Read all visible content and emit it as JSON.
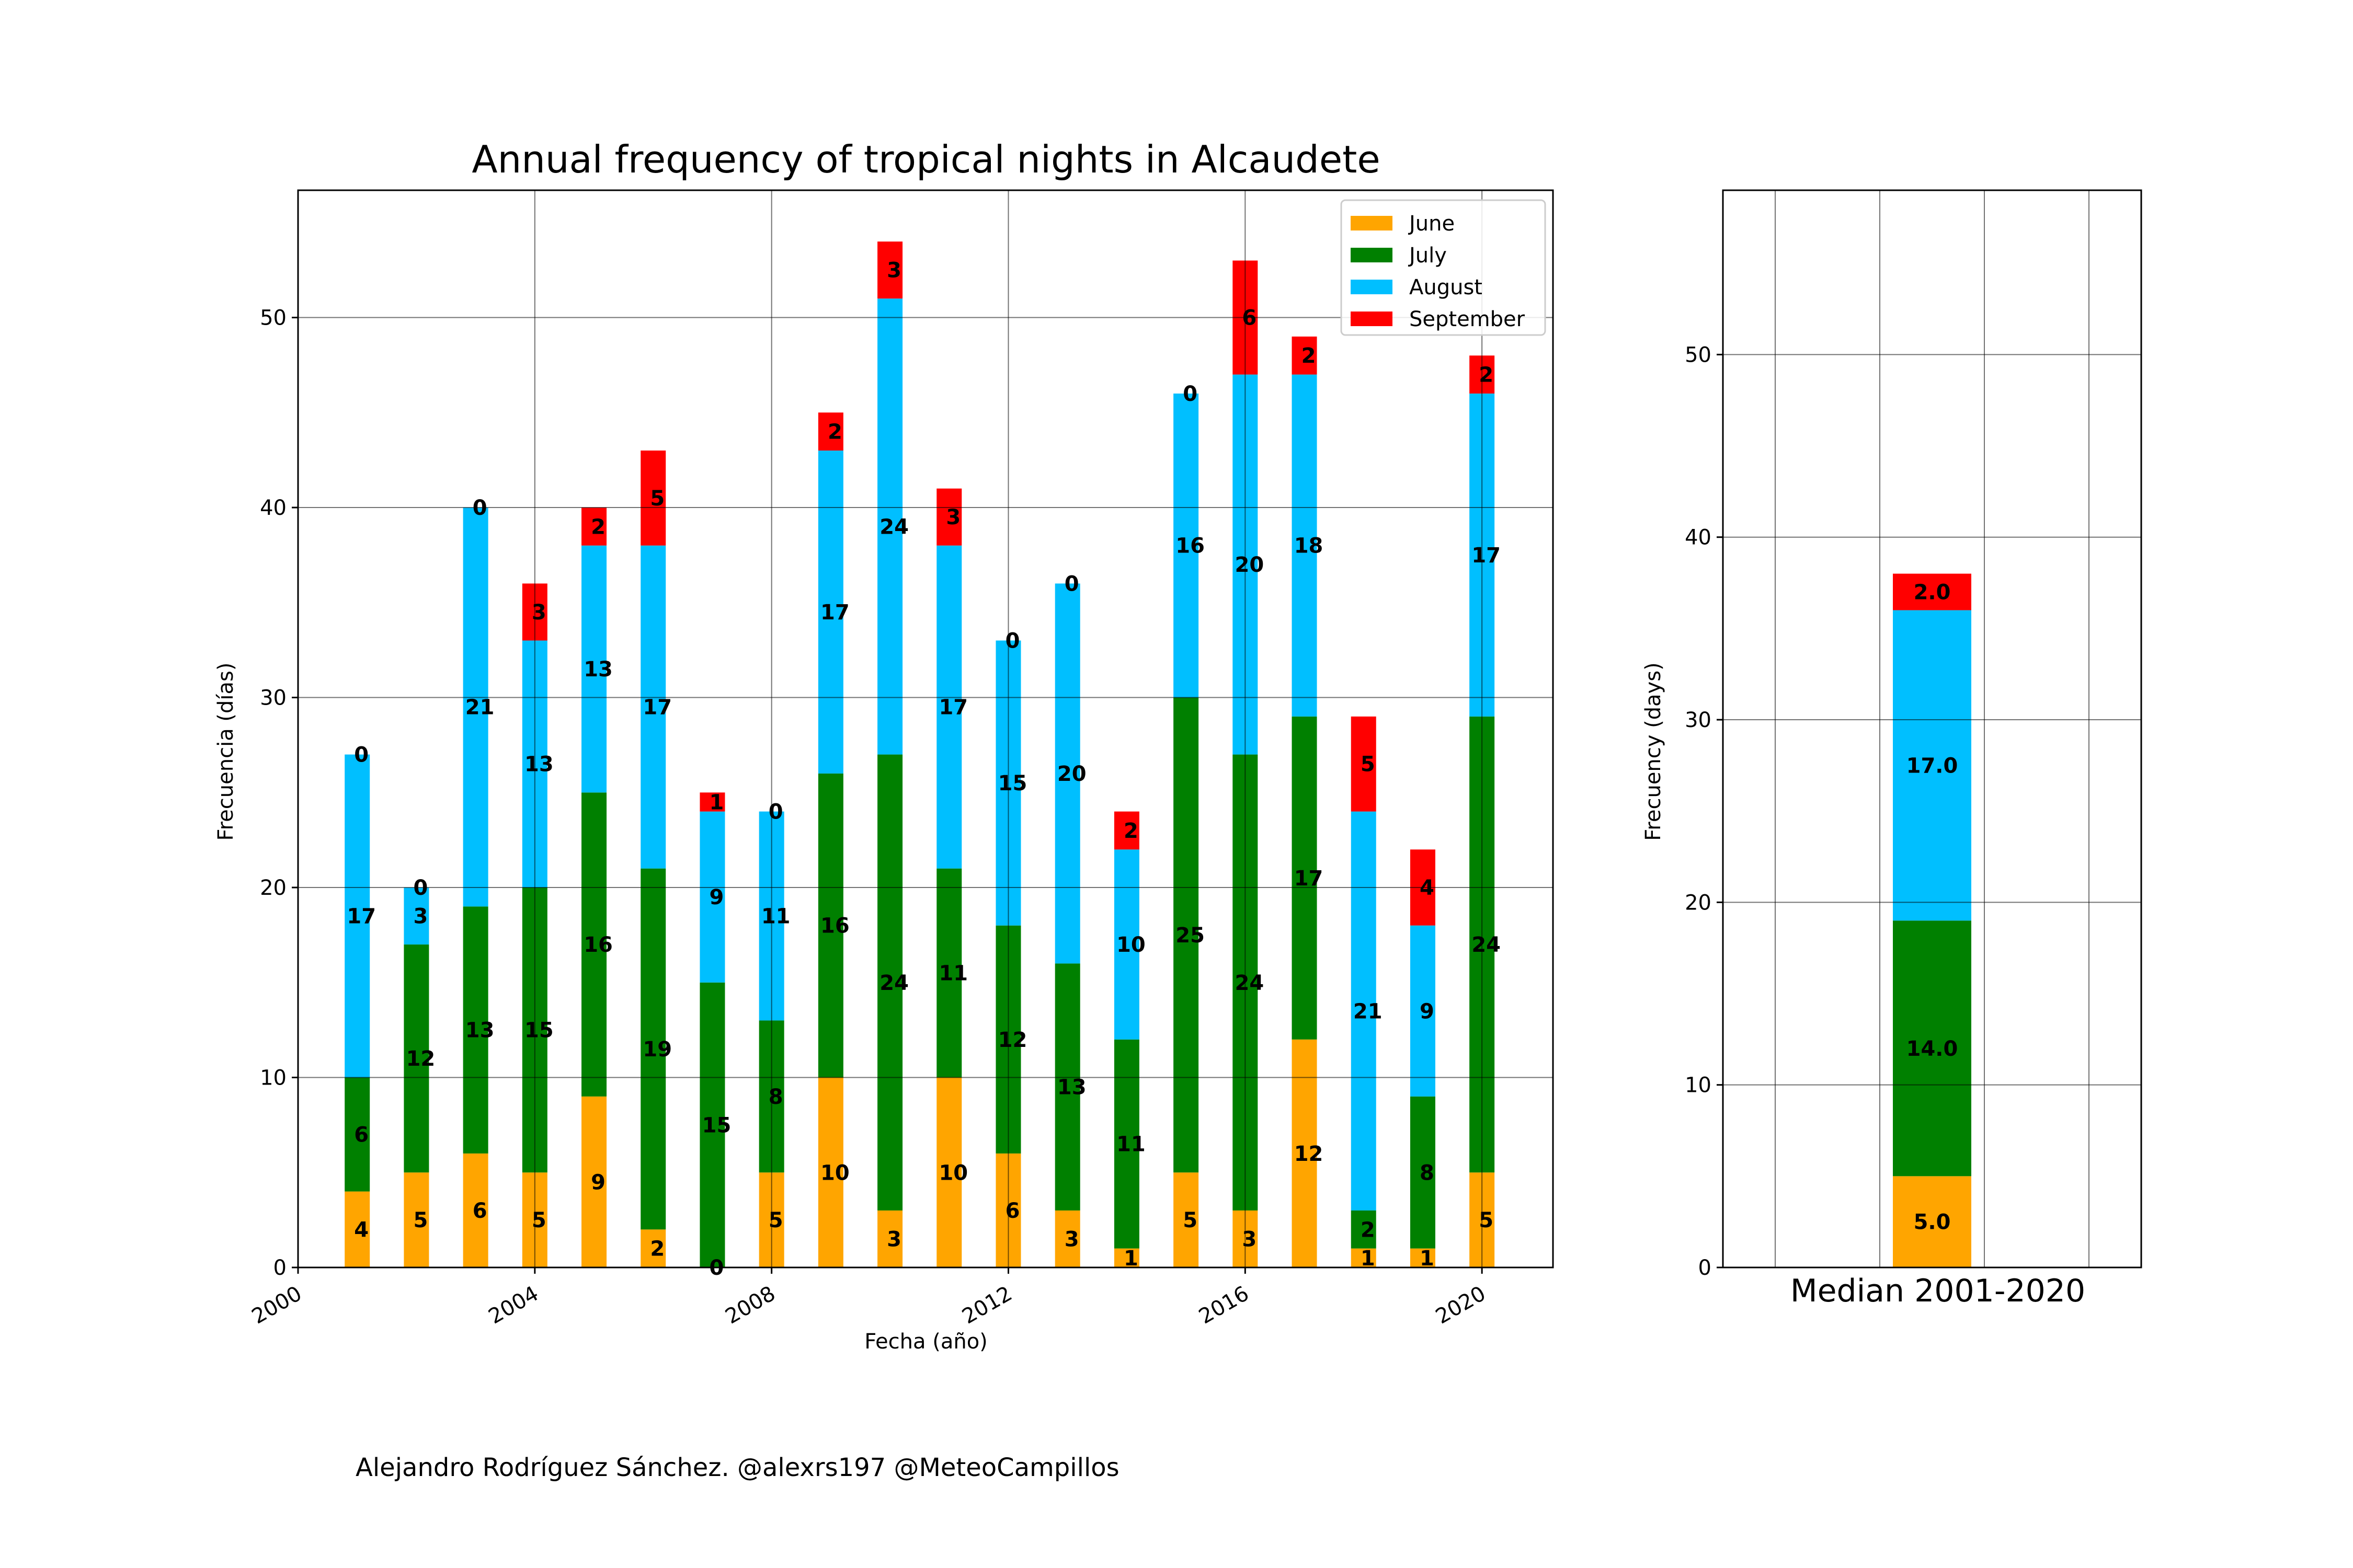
{
  "chart_data": [
    {
      "type": "bar",
      "stacked": true,
      "title": "Annual frequency of tropical nights in Alcaudete",
      "xlabel": "Fecha (año)",
      "ylabel": "Frecuencia (días)",
      "xlim": [
        2000,
        2021.2
      ],
      "ylim": [
        0,
        56.7
      ],
      "x_ticks": [
        "2000",
        "2004",
        "2008",
        "2012",
        "2016",
        "2020"
      ],
      "y_ticks": [
        "0",
        "10",
        "20",
        "30",
        "40",
        "50"
      ],
      "grid": true,
      "legend_position": "top-right",
      "categories": [
        2001,
        2002,
        2003,
        2004,
        2005,
        2006,
        2007,
        2008,
        2009,
        2010,
        2011,
        2012,
        2013,
        2014,
        2015,
        2016,
        2017,
        2018,
        2019,
        2020
      ],
      "series": [
        {
          "name": "June",
          "color": "#FFA500",
          "values": [
            4,
            5,
            6,
            5,
            9,
            2,
            0,
            5,
            10,
            3,
            10,
            6,
            3,
            1,
            5,
            3,
            12,
            1,
            1,
            5
          ]
        },
        {
          "name": "July",
          "color": "#008000",
          "values": [
            6,
            12,
            13,
            15,
            16,
            19,
            15,
            8,
            16,
            24,
            11,
            12,
            13,
            11,
            25,
            24,
            17,
            2,
            8,
            24
          ]
        },
        {
          "name": "August",
          "color": "#00BFFF",
          "values": [
            17,
            3,
            21,
            13,
            13,
            17,
            9,
            11,
            17,
            24,
            17,
            15,
            20,
            10,
            16,
            20,
            18,
            21,
            9,
            17
          ]
        },
        {
          "name": "September",
          "color": "#FF0000",
          "values": [
            0,
            0,
            0,
            3,
            2,
            5,
            1,
            0,
            2,
            3,
            3,
            0,
            0,
            2,
            0,
            6,
            2,
            5,
            4,
            2
          ]
        }
      ]
    },
    {
      "type": "bar",
      "stacked": true,
      "title": "",
      "xlabel": "Median 2001-2020",
      "ylabel": "Frecuency (days)",
      "ylim": [
        0,
        59
      ],
      "y_ticks": [
        "0",
        "10",
        "20",
        "30",
        "40",
        "50"
      ],
      "grid": true,
      "series": [
        {
          "name": "June",
          "color": "#FFA500",
          "value": 5.0,
          "label": "5.0"
        },
        {
          "name": "July",
          "color": "#008000",
          "value": 14.0,
          "label": "14.0"
        },
        {
          "name": "August",
          "color": "#00BFFF",
          "value": 17.0,
          "label": "17.0"
        },
        {
          "name": "September",
          "color": "#FF0000",
          "value": 2.0,
          "label": "2.0"
        }
      ]
    }
  ],
  "credit": "Alejandro Rodríguez Sánchez. @alexrs197 @MeteoCampillos"
}
